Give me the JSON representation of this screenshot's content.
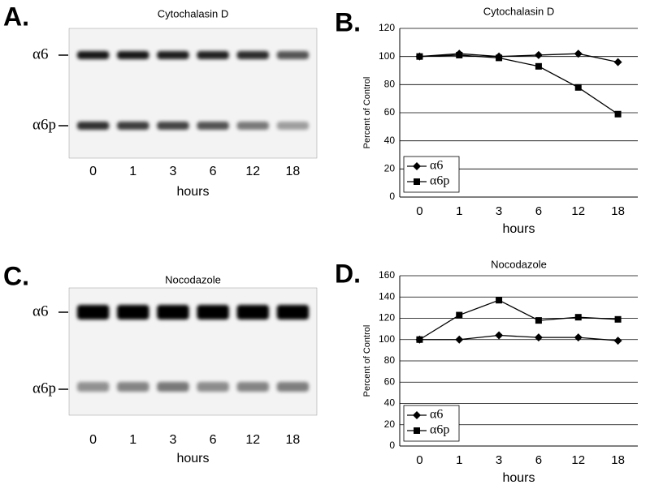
{
  "blots": [
    {
      "panel": "A.",
      "title": "Cytochalasin D",
      "bands": [
        "α6",
        "α6p"
      ],
      "lanes": [
        "0",
        "1",
        "3",
        "6",
        "12",
        "18"
      ],
      "xlabel": "hours"
    },
    {
      "panel": "C.",
      "title": "Nocodazole",
      "bands": [
        "α6",
        "α6p"
      ],
      "lanes": [
        "0",
        "1",
        "3",
        "6",
        "12",
        "18"
      ],
      "xlabel": "hours"
    }
  ],
  "chart_data": [
    {
      "type": "line",
      "panel": "B.",
      "title": "Cytochalasin D",
      "ylabel": "Percent of Control",
      "xlabel": "hours",
      "categories": [
        "0",
        "1",
        "3",
        "6",
        "12",
        "18"
      ],
      "series": [
        {
          "name": "α6",
          "color": "#000000",
          "marker": "diamond",
          "values": [
            100,
            102,
            100,
            101,
            102,
            96
          ]
        },
        {
          "name": "α6p",
          "color": "#000000",
          "marker": "square",
          "values": [
            100,
            101,
            99,
            93,
            78,
            59
          ]
        }
      ],
      "ylim": [
        0,
        120
      ],
      "yticks": [
        0,
        20,
        40,
        60,
        80,
        100,
        120
      ],
      "grid": true,
      "legend": "lower left"
    },
    {
      "type": "line",
      "panel": "D.",
      "title": "Nocodazole",
      "ylabel": "Percent of Control",
      "xlabel": "hours",
      "categories": [
        "0",
        "1",
        "3",
        "6",
        "12",
        "18"
      ],
      "series": [
        {
          "name": "α6",
          "color": "#000000",
          "marker": "diamond",
          "values": [
            100,
            100,
            104,
            102,
            102,
            99
          ]
        },
        {
          "name": "α6p",
          "color": "#000000",
          "marker": "square",
          "values": [
            100,
            123,
            137,
            118,
            121,
            119
          ]
        }
      ],
      "ylim": [
        0,
        160
      ],
      "yticks": [
        0,
        20,
        40,
        60,
        80,
        100,
        120,
        140,
        160
      ],
      "grid": true,
      "legend": "lower left"
    }
  ]
}
